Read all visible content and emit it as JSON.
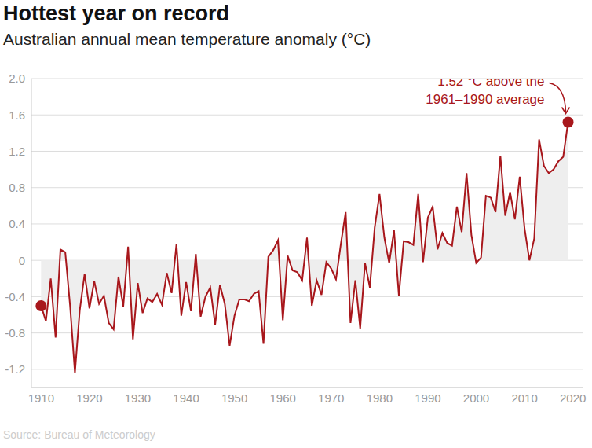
{
  "chart_data": {
    "type": "line",
    "title": "Hottest year on record",
    "subtitle": "Australian annual mean temperature anomaly (°C)",
    "source": "Source: Bureau of Meteorology",
    "x": [
      1910,
      1911,
      1912,
      1913,
      1914,
      1915,
      1916,
      1917,
      1918,
      1919,
      1920,
      1921,
      1922,
      1923,
      1924,
      1925,
      1926,
      1927,
      1928,
      1929,
      1930,
      1931,
      1932,
      1933,
      1934,
      1935,
      1936,
      1937,
      1938,
      1939,
      1940,
      1941,
      1942,
      1943,
      1944,
      1945,
      1946,
      1947,
      1948,
      1949,
      1950,
      1951,
      1952,
      1953,
      1954,
      1955,
      1956,
      1957,
      1958,
      1959,
      1960,
      1961,
      1962,
      1963,
      1964,
      1965,
      1966,
      1967,
      1968,
      1969,
      1970,
      1971,
      1972,
      1973,
      1974,
      1975,
      1976,
      1977,
      1978,
      1979,
      1980,
      1981,
      1982,
      1983,
      1984,
      1985,
      1986,
      1987,
      1988,
      1989,
      1990,
      1991,
      1992,
      1993,
      1994,
      1995,
      1996,
      1997,
      1998,
      1999,
      2000,
      2001,
      2002,
      2003,
      2004,
      2005,
      2006,
      2007,
      2008,
      2009,
      2010,
      2011,
      2012,
      2013,
      2014,
      2015,
      2016,
      2017,
      2018,
      2019
    ],
    "values": [
      -0.5,
      -0.67,
      -0.2,
      -0.85,
      0.12,
      0.09,
      -0.5,
      -1.24,
      -0.55,
      -0.15,
      -0.53,
      -0.23,
      -0.48,
      -0.39,
      -0.69,
      -0.76,
      -0.18,
      -0.51,
      0.15,
      -0.87,
      -0.25,
      -0.58,
      -0.42,
      -0.46,
      -0.37,
      -0.49,
      -0.14,
      -0.36,
      0.18,
      -0.61,
      -0.24,
      -0.56,
      0.07,
      -0.62,
      -0.4,
      -0.3,
      -0.71,
      -0.27,
      -0.48,
      -0.94,
      -0.61,
      -0.43,
      -0.43,
      -0.45,
      -0.37,
      -0.34,
      -0.92,
      0.04,
      0.11,
      0.22,
      -0.66,
      0.05,
      -0.11,
      -0.13,
      -0.22,
      0.25,
      -0.5,
      -0.22,
      -0.38,
      -0.02,
      -0.09,
      -0.21,
      0.18,
      0.53,
      -0.69,
      -0.22,
      -0.75,
      -0.03,
      -0.3,
      0.36,
      0.73,
      0.25,
      -0.03,
      0.33,
      -0.39,
      0.21,
      0.2,
      0.17,
      0.73,
      -0.02,
      0.47,
      0.59,
      0.12,
      0.3,
      0.19,
      0.16,
      0.59,
      0.31,
      0.96,
      0.28,
      -0.03,
      0.03,
      0.71,
      0.69,
      0.53,
      1.15,
      0.49,
      0.75,
      0.45,
      0.92,
      0.35,
      0.0,
      0.24,
      1.33,
      1.04,
      0.96,
      1.0,
      1.09,
      1.14,
      1.52
    ],
    "color": "#a8171c",
    "xlim": [
      1908,
      2022
    ],
    "xticks": [
      1910,
      1920,
      1930,
      1940,
      1950,
      1960,
      1970,
      1980,
      1990,
      2000,
      2010,
      2020
    ],
    "ylim": [
      -1.4,
      2.0
    ],
    "yticks": [
      -1.2,
      -0.8,
      -0.4,
      0,
      0.4,
      0.8,
      1.2,
      1.6,
      {
        "value": 2.0,
        "label": "2.0"
      }
    ],
    "grid": true,
    "marker": "endpoints",
    "annotations": [
      {
        "x": 2019,
        "y": 1.52,
        "text": "1.52 °C above the\n1961–1990 average"
      }
    ]
  }
}
